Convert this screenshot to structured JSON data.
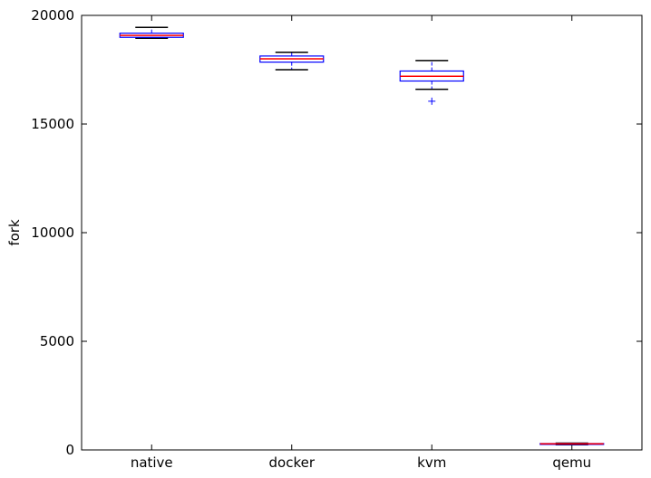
{
  "chart_data": {
    "type": "box",
    "title": "",
    "xlabel": "",
    "ylabel": "fork",
    "ylim": [
      0,
      20000
    ],
    "yticks": [
      "0",
      "5000",
      "10000",
      "15000",
      "20000"
    ],
    "yticks_values": [
      0,
      5000,
      10000,
      15000,
      20000
    ],
    "categories": [
      "native",
      "docker",
      "kvm",
      "qemu"
    ],
    "boxes": [
      {
        "whisker_low": 18950,
        "q1": 18990,
        "median": 19080,
        "q3": 19180,
        "whisker_high": 19450,
        "outliers": []
      },
      {
        "whisker_low": 17500,
        "q1": 17850,
        "median": 18000,
        "q3": 18130,
        "whisker_high": 18300,
        "outliers": []
      },
      {
        "whisker_low": 16600,
        "q1": 16980,
        "median": 17200,
        "q3": 17440,
        "whisker_high": 17920,
        "outliers": [
          16050
        ]
      },
      {
        "whisker_low": 240,
        "q1": 265,
        "median": 280,
        "q3": 295,
        "whisker_high": 315,
        "outliers": []
      }
    ],
    "colors": {
      "box": "#0000ff",
      "median": "#ff0000",
      "whisker": "#000000",
      "outlier": "#0000ff"
    },
    "grid": false
  }
}
